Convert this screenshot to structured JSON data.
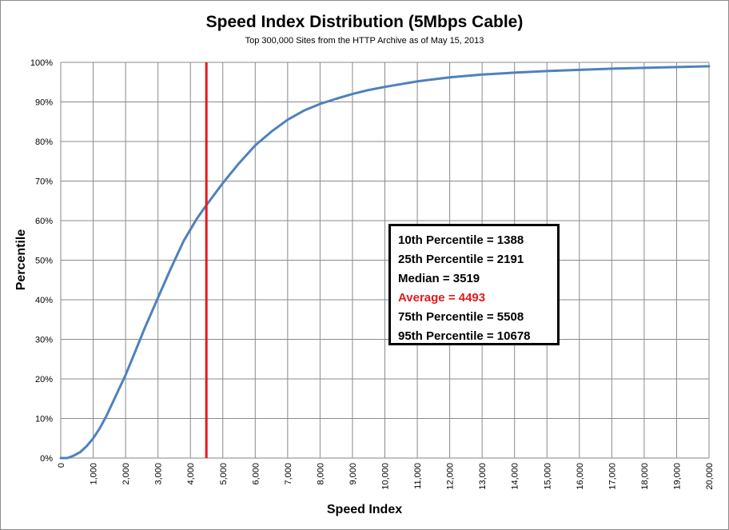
{
  "chart_data": {
    "type": "line",
    "title": "Speed Index Distribution (5Mbps Cable)",
    "subtitle": "Top 300,000 Sites from the HTTP  Archive as of May 15, 2013",
    "xlabel": "Speed Index",
    "ylabel": "Percentile",
    "xlim": [
      0,
      20000
    ],
    "ylim": [
      0,
      100
    ],
    "grid": true,
    "x_ticks": [
      "0",
      "1,000",
      "2,000",
      "3,000",
      "4,000",
      "5,000",
      "6,000",
      "7,000",
      "8,000",
      "9,000",
      "10,000",
      "11,000",
      "12,000",
      "13,000",
      "14,000",
      "15,000",
      "16,000",
      "17,000",
      "18,000",
      "19,000",
      "20,000"
    ],
    "y_ticks": [
      "0%",
      "10%",
      "20%",
      "30%",
      "40%",
      "50%",
      "60%",
      "70%",
      "80%",
      "90%",
      "100%"
    ],
    "series": [
      {
        "color": "#4f81bd",
        "x": [
          0,
          200,
          400,
          600,
          800,
          1000,
          1200,
          1400,
          1600,
          1800,
          2000,
          2300,
          2600,
          3000,
          3400,
          3800,
          4200,
          4500,
          5000,
          5500,
          6000,
          6500,
          7000,
          7500,
          8000,
          8500,
          9000,
          9500,
          10000,
          11000,
          12000,
          13000,
          14000,
          15000,
          16000,
          17000,
          18000,
          19000,
          20000
        ],
        "y": [
          0,
          0,
          0.6,
          1.5,
          3,
          5,
          7.5,
          10.5,
          14,
          17.5,
          21,
          27,
          33,
          40.5,
          48,
          55,
          60.5,
          64,
          69.5,
          74.5,
          79,
          82.5,
          85.5,
          87.8,
          89.5,
          90.8,
          92,
          93,
          93.8,
          95.2,
          96.2,
          96.9,
          97.4,
          97.8,
          98.1,
          98.4,
          98.6,
          98.8,
          99
        ]
      }
    ],
    "vertical_line": {
      "x": 4493,
      "color": "#e41a1c",
      "label": "Average"
    },
    "annotations": [
      {
        "text": "10th Percentile = 1388",
        "color": "#000000"
      },
      {
        "text": "25th Percentile = 2191",
        "color": "#000000"
      },
      {
        "text": "Median = 3519",
        "color": "#000000"
      },
      {
        "text": "Average = 4493",
        "color": "#e41a1c"
      },
      {
        "text": "75th Percentile = 5508",
        "color": "#000000"
      },
      {
        "text": "95th Percentile = 10678",
        "color": "#000000"
      }
    ]
  }
}
